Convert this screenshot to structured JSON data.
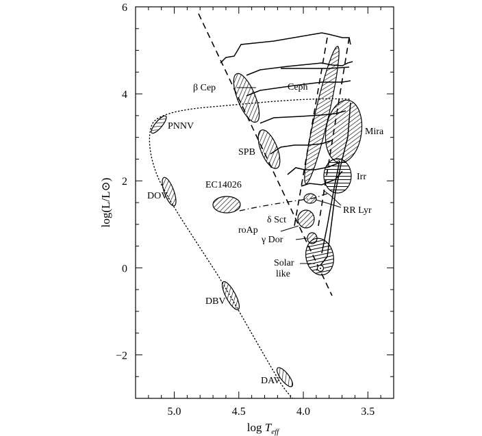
{
  "chart_data": {
    "type": "scatter",
    "title": "",
    "xlabel": "log T_eff",
    "xlabel_main": "log",
    "xlabel_T": "T",
    "xlabel_sub": "eff",
    "ylabel": "log(L/L⊙)",
    "xlim": [
      5.3,
      3.3
    ],
    "ylim": [
      -3,
      6
    ],
    "x_ticks": [
      "5.0",
      "4.5",
      "4.0",
      "3.5"
    ],
    "y_ticks": [
      "6",
      "4",
      "2",
      "0",
      "−2"
    ],
    "x_tick_values": [
      5.0,
      4.5,
      4.0,
      3.5
    ],
    "y_tick_values": [
      6,
      4,
      2,
      0,
      -2
    ],
    "grid": false,
    "regions": [
      {
        "label": "β Cep",
        "x": 4.38,
        "y": 3.95,
        "hatch": "diagonal"
      },
      {
        "label": "Ceph",
        "x": 3.77,
        "y": 3.55,
        "hatch": "diagonal"
      },
      {
        "label": "Mira",
        "x": 3.58,
        "y": 3.45,
        "hatch": "diagonal"
      },
      {
        "label": "PNNV",
        "x": 5.02,
        "y": 3.35,
        "hatch": "diagonal"
      },
      {
        "label": "SPB",
        "x": 4.2,
        "y": 2.7,
        "hatch": "diagonal"
      },
      {
        "label": "Irr",
        "x": 3.63,
        "y": 2.05,
        "hatch": "horizontal"
      },
      {
        "label": "EC14026",
        "x": 4.52,
        "y": 1.45,
        "hatch": "diagonal"
      },
      {
        "label": "DOV",
        "x": 4.93,
        "y": 1.75,
        "hatch": "diagonal"
      },
      {
        "label": "RR Lyr",
        "x": 3.85,
        "y": 1.6,
        "hatch": "diagonal"
      },
      {
        "label": "δ Sct",
        "x": 3.88,
        "y": 1.1,
        "hatch": "diagonal"
      },
      {
        "label": "roAp",
        "x": 3.88,
        "y": 0.95,
        "hatch": "none"
      },
      {
        "label": "γ Dor",
        "x": 3.85,
        "y": 0.7,
        "hatch": "diagonal"
      },
      {
        "label": "Solar like",
        "x": 3.77,
        "y": 0.35,
        "hatch": "horizontal"
      },
      {
        "label": "DBV",
        "x": 4.45,
        "y": -0.6,
        "hatch": "diagonal"
      },
      {
        "label": "DAV",
        "x": 4.06,
        "y": -2.45,
        "hatch": "diagonal"
      }
    ],
    "labels": {
      "beta_cep": "β Cep",
      "ceph": "Ceph",
      "mira": "Mira",
      "pnnv": "PNNV",
      "spb": "SPB",
      "irr": "Irr",
      "ec14026": "EC14026",
      "dov": "DOV",
      "rr_lyr": "RR Lyr",
      "delta_sct": "δ Sct",
      "roap": "roAp",
      "gamma_dor": "γ Dor",
      "solar": "Solar",
      "like": "like",
      "dbv": "DBV",
      "dav": "DAV"
    }
  }
}
